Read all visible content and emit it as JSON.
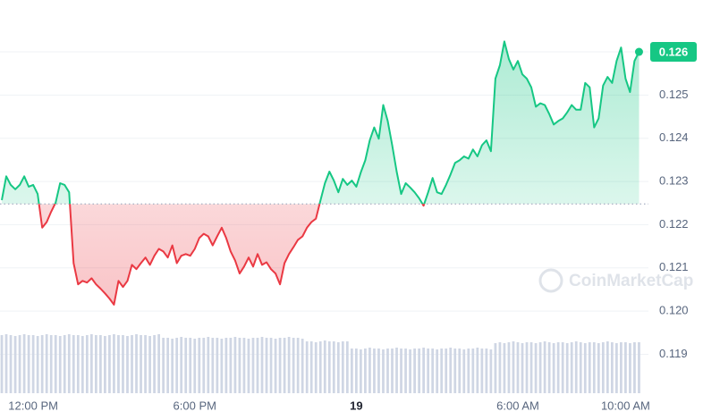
{
  "chart_data": {
    "type": "line",
    "watermark": "CoinMarketCap",
    "baseline": 0.12248,
    "current_price": 0.126,
    "up_color": "#16c784",
    "down_color": "#ea3943",
    "volume_color": "#cfd6e4",
    "xlim": [
      646,
      2091
    ],
    "ylim": [
      0.1181,
      0.1272
    ],
    "xticks": [
      {
        "value": 720,
        "label": "12:00 PM"
      },
      {
        "value": 1080,
        "label": "6:00 PM"
      },
      {
        "value": 1440,
        "label": "19"
      },
      {
        "value": 1800,
        "label": "6:00 AM"
      },
      {
        "value": 2040,
        "label": "10:00 AM"
      }
    ],
    "yticks": [
      0.119,
      {
        "value": 0.12,
        "label": "0.120"
      },
      0.121,
      0.122,
      0.123,
      0.124,
      0.125,
      0.126
    ],
    "grid": true,
    "x": [
      650,
      660,
      670,
      680,
      690,
      700,
      710,
      720,
      730,
      740,
      750,
      760,
      770,
      780,
      790,
      800,
      810,
      820,
      830,
      840,
      850,
      860,
      870,
      880,
      890,
      900,
      910,
      920,
      930,
      940,
      950,
      960,
      970,
      980,
      990,
      1000,
      1010,
      1020,
      1030,
      1040,
      1050,
      1060,
      1070,
      1080,
      1090,
      1100,
      1110,
      1120,
      1130,
      1140,
      1150,
      1160,
      1170,
      1180,
      1190,
      1200,
      1210,
      1220,
      1230,
      1240,
      1250,
      1260,
      1270,
      1280,
      1290,
      1300,
      1310,
      1320,
      1330,
      1340,
      1350,
      1360,
      1370,
      1380,
      1390,
      1400,
      1410,
      1420,
      1430,
      1440,
      1450,
      1460,
      1470,
      1480,
      1490,
      1500,
      1510,
      1520,
      1530,
      1540,
      1550,
      1560,
      1570,
      1580,
      1590,
      1600,
      1610,
      1620,
      1630,
      1640,
      1650,
      1660,
      1670,
      1680,
      1690,
      1700,
      1710,
      1720,
      1730,
      1740,
      1750,
      1760,
      1770,
      1780,
      1790,
      1800,
      1810,
      1820,
      1830,
      1840,
      1850,
      1860,
      1870,
      1880,
      1890,
      1900,
      1910,
      1920,
      1930,
      1940,
      1950,
      1960,
      1970,
      1980,
      1990,
      2000,
      2010,
      2020,
      2030,
      2040,
      2050,
      2060,
      2070
    ],
    "series": [
      {
        "name": "Price",
        "values": [
          0.12257,
          0.12312,
          0.12292,
          0.12282,
          0.12292,
          0.12312,
          0.12288,
          0.12292,
          0.12271,
          0.12193,
          0.12206,
          0.1223,
          0.12251,
          0.12296,
          0.12292,
          0.12275,
          0.12111,
          0.12062,
          0.1207,
          0.12066,
          0.12076,
          0.12062,
          0.12052,
          0.12041,
          0.12029,
          0.12015,
          0.1207,
          0.12056,
          0.1207,
          0.12107,
          0.12097,
          0.12111,
          0.12124,
          0.12107,
          0.12128,
          0.12144,
          0.12138,
          0.12124,
          0.12152,
          0.12111,
          0.12128,
          0.12132,
          0.12128,
          0.12144,
          0.12169,
          0.12179,
          0.12173,
          0.12152,
          0.12173,
          0.12193,
          0.12169,
          0.12138,
          0.12117,
          0.12087,
          0.12103,
          0.12124,
          0.12103,
          0.12132,
          0.12107,
          0.12113,
          0.12097,
          0.12087,
          0.12062,
          0.12111,
          0.12132,
          0.12148,
          0.12165,
          0.12173,
          0.12193,
          0.12206,
          0.12214,
          0.12255,
          0.12296,
          0.12323,
          0.12302,
          0.12275,
          0.12306,
          0.12292,
          0.12302,
          0.12288,
          0.12321,
          0.12349,
          0.12395,
          0.12425,
          0.12399,
          0.12477,
          0.1244,
          0.12384,
          0.12323,
          0.12271,
          0.12296,
          0.12286,
          0.12275,
          0.12261,
          0.12244,
          0.12275,
          0.12308,
          0.12275,
          0.12271,
          0.12292,
          0.12316,
          0.12343,
          0.12349,
          0.12358,
          0.12353,
          0.12374,
          0.12358,
          0.12384,
          0.12395,
          0.1237,
          0.12538,
          0.12569,
          0.12624,
          0.12583,
          0.12559,
          0.12579,
          0.12548,
          0.12538,
          0.12518,
          0.12473,
          0.12481,
          0.12477,
          0.12456,
          0.12432,
          0.1244,
          0.12446,
          0.1246,
          0.12477,
          0.12466,
          0.12466,
          0.12528,
          0.12518,
          0.12425,
          0.12446,
          0.12522,
          0.12542,
          0.12528,
          0.12579,
          0.1261,
          0.12538,
          0.12507,
          0.12579,
          0.126
        ]
      }
    ],
    "volume": [
      65,
      66,
      65,
      64,
      65,
      66,
      65,
      65,
      64,
      65,
      66,
      65,
      65,
      64,
      65,
      66,
      65,
      65,
      64,
      65,
      66,
      65,
      65,
      64,
      65,
      66,
      65,
      65,
      64,
      65,
      66,
      65,
      65,
      64,
      65,
      66,
      62,
      62,
      61,
      62,
      63,
      62,
      62,
      61,
      62,
      62,
      63,
      62,
      62,
      61,
      62,
      62,
      63,
      62,
      62,
      61,
      62,
      62,
      63,
      62,
      62,
      61,
      62,
      62,
      63,
      62,
      62,
      61,
      58,
      58,
      57,
      58,
      59,
      58,
      58,
      57,
      58,
      58,
      50,
      50,
      49,
      50,
      51,
      50,
      50,
      49,
      50,
      50,
      51,
      50,
      50,
      49,
      50,
      50,
      51,
      50,
      50,
      49,
      50,
      50,
      51,
      50,
      50,
      49,
      50,
      50,
      51,
      50,
      50,
      49,
      56,
      57,
      56,
      57,
      58,
      57,
      56,
      57,
      57,
      56,
      57,
      58,
      57,
      56,
      57,
      57,
      56,
      57,
      58,
      57,
      56,
      57,
      57,
      56,
      57,
      58,
      57,
      56,
      57,
      57,
      56,
      57,
      57
    ]
  }
}
